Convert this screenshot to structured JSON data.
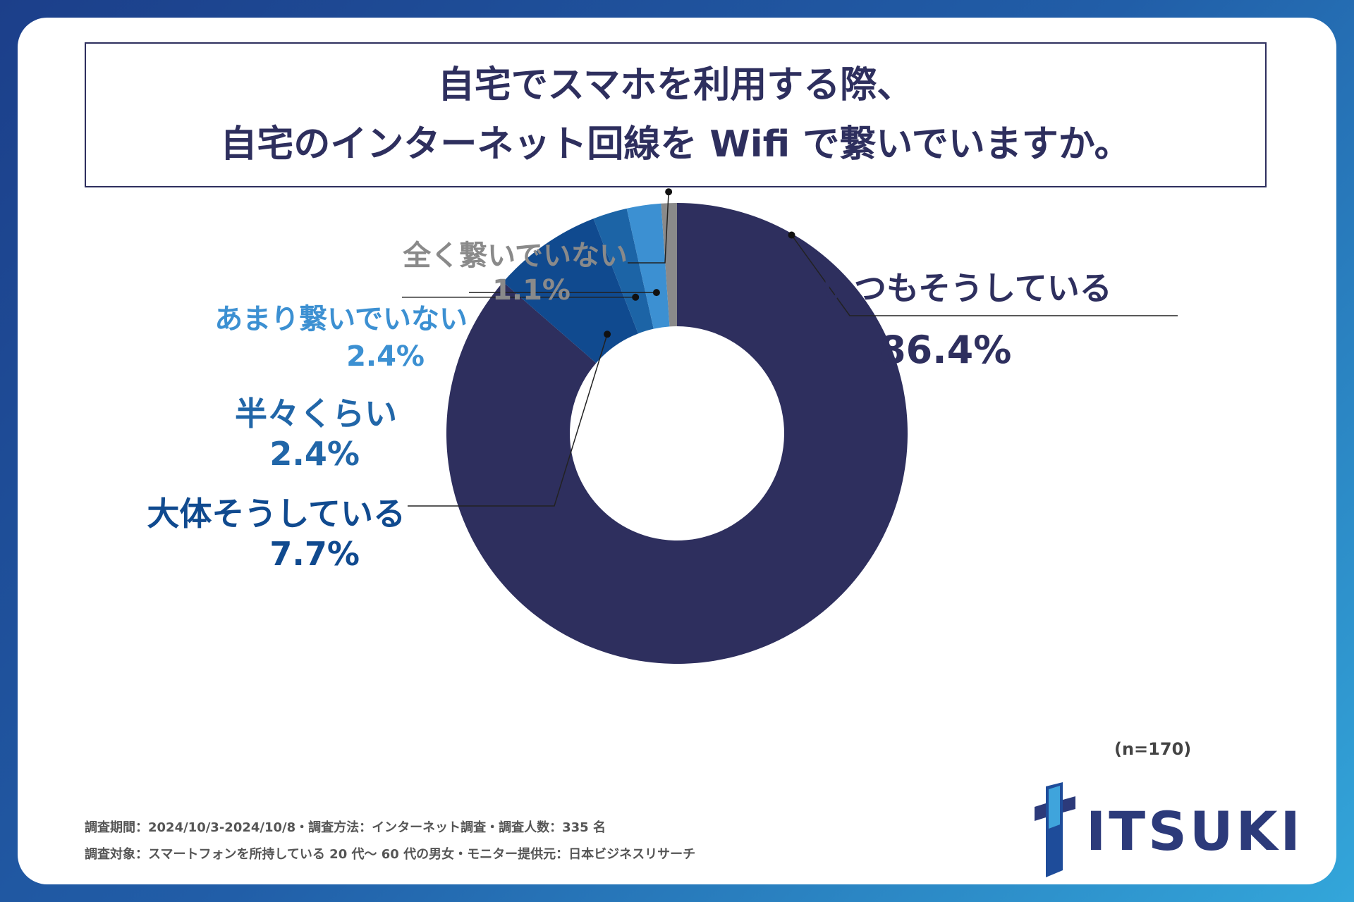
{
  "title": {
    "line1": "自宅でスマホを利用する際、",
    "line2": "自宅のインターネット回線を Wifi で繋いでいますか。"
  },
  "chart_data": {
    "type": "pie",
    "donut": true,
    "categories": [
      "いつもそうしている",
      "大体そうしている",
      "半々くらい",
      "あまり繋いでいない",
      "全く繋いでいない"
    ],
    "values": [
      86.4,
      7.7,
      2.4,
      2.4,
      1.1
    ],
    "value_labels": [
      "86.4%",
      "7.7%",
      "2.4%",
      "2.4%",
      "1.1%"
    ],
    "colors": [
      "#2e2f5e",
      "#104a8f",
      "#1c64a6",
      "#3c90d2",
      "#8a8a8a"
    ],
    "label_colors": [
      "#2e2f5e",
      "#104a8f",
      "#2166a8",
      "#3c90d2",
      "#8a8a8a"
    ]
  },
  "sample_note": "(n=170)",
  "footnotes": {
    "line1": "調査期間：2024/10/3-2024/10/8・調査方法：インターネット調査・調査人数：335 名",
    "line2": "調査対象：スマートフォンを所持している 20 代～ 60 代の男女・モニター提供元：日本ビジネスリサーチ"
  },
  "logo": {
    "text": "ITSUKI"
  }
}
